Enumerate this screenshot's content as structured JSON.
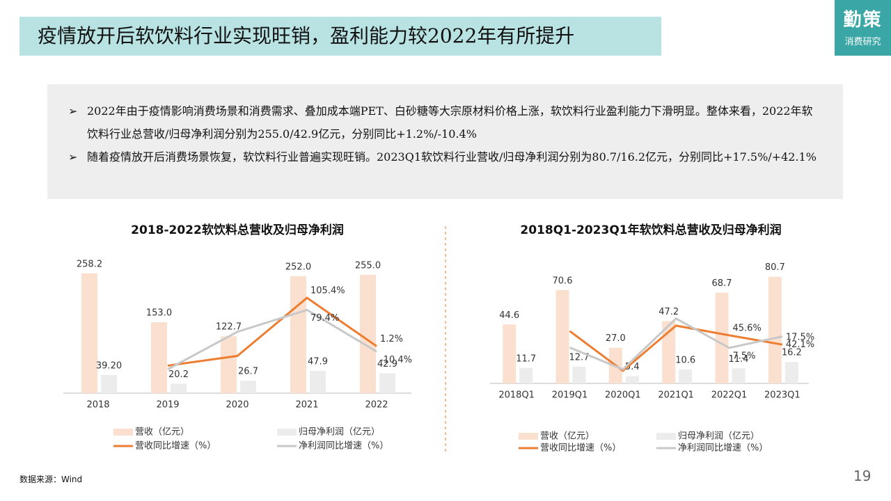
{
  "header": {
    "title": "疫情放开后软饮料行业实现旺销，盈利能力较2022年有所提升",
    "logo": "勤策",
    "logo_sub": "消费研究"
  },
  "bullets": [
    "2022年由于疫情影响消费场景和消费需求、叠加成本端PET、白砂糖等大宗原材料价格上涨，软饮料行业盈利能力下滑明显。整体来看，2022年软饮料行业总营收/归母净利润分别为255.0/42.9亿元，分别同比+1.2%/-10.4%",
    "随着疫情放开后消费场景恢复，软饮料行业普遍实现旺销。2023Q1软饮料行业营收/归母净利润分别为80.7/16.2亿元，分别同比+17.5%/+42.1%"
  ],
  "chart_data": [
    {
      "type": "combo",
      "title": "2018-2022软饮料总营收及归母净利润",
      "categories": [
        "2018",
        "2019",
        "2020",
        "2021",
        "2022"
      ],
      "ylim": [
        0,
        300
      ],
      "y2lim": [
        -100,
        200
      ],
      "series": [
        {
          "name": "营收（亿元）",
          "type": "bar",
          "color": "#fbe0d0",
          "values": [
            258.2,
            153.0,
            122.7,
            252.0,
            255.0
          ],
          "value_labels": [
            "258.2",
            "153.0",
            "122.7",
            "252.0",
            "255.0"
          ]
        },
        {
          "name": "归母净利润（亿元）",
          "type": "bar",
          "color": "#ececec",
          "values": [
            39.2,
            20.2,
            26.7,
            47.9,
            42.9
          ],
          "value_labels": [
            "39.20",
            "20.2",
            "26.7",
            "47.9",
            "42.9"
          ]
        },
        {
          "name": "营收同比增速（%）",
          "type": "line",
          "axis": "y2",
          "color": "#ed7d31",
          "values": [
            null,
            -40.7,
            -19.8,
            105.4,
            1.2
          ],
          "value_labels": [
            null,
            null,
            null,
            "105.4%",
            "1.2%"
          ]
        },
        {
          "name": "净利润同比增速（%）",
          "type": "line",
          "axis": "y2",
          "color": "#c8c8c8",
          "values": [
            null,
            -48.5,
            32.2,
            79.4,
            -10.4
          ],
          "value_labels": [
            null,
            null,
            null,
            "79.4%",
            "-10.4%"
          ]
        }
      ]
    },
    {
      "type": "combo",
      "title": "2018Q1-2023Q1年软饮料总营收及归母净利润",
      "categories": [
        "2018Q1",
        "2019Q1",
        "2020Q1",
        "2021Q1",
        "2022Q1",
        "2023Q1"
      ],
      "ylim": [
        0,
        100
      ],
      "y2lim": [
        -100,
        300
      ],
      "series": [
        {
          "name": "营收（亿元）",
          "type": "bar",
          "color": "#fbe0d0",
          "values": [
            44.6,
            70.6,
            27.0,
            47.2,
            68.7,
            80.7
          ],
          "value_labels": [
            "44.6",
            "70.6",
            "27.0",
            "47.2",
            "68.7",
            "80.7"
          ]
        },
        {
          "name": "归母净利润（亿元）",
          "type": "bar",
          "color": "#ececec",
          "values": [
            11.7,
            12.7,
            5.4,
            10.6,
            11.4,
            16.2
          ],
          "value_labels": [
            "11.7",
            "12.7",
            "5.4",
            "10.6",
            "11.4",
            "16.2"
          ]
        },
        {
          "name": "营收同比增速（%）",
          "type": "line",
          "axis": "y2",
          "color": "#ed7d31",
          "values": [
            null,
            58.3,
            -61.8,
            74.8,
            45.6,
            17.5
          ],
          "value_labels": [
            null,
            null,
            null,
            null,
            "45.6%",
            "17.5%"
          ]
        },
        {
          "name": "净利润同比增速（%）",
          "type": "line",
          "axis": "y2",
          "color": "#c8c8c8",
          "values": [
            null,
            8.5,
            -57.5,
            96.3,
            7.5,
            42.1
          ],
          "value_labels": [
            null,
            null,
            null,
            null,
            "7.5%",
            "42.1%"
          ]
        }
      ]
    }
  ],
  "source": "数据来源：Wind",
  "page_number": "19"
}
